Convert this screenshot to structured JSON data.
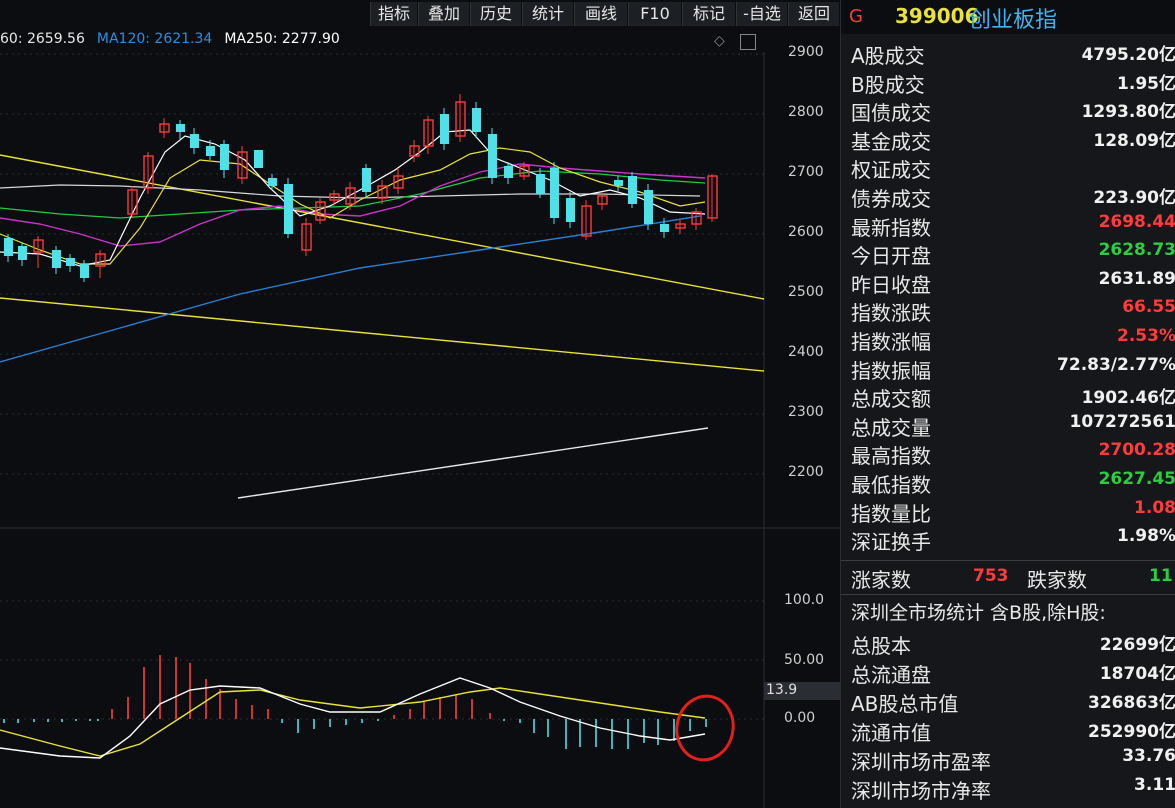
{
  "toolbar": {
    "buttons": [
      "指标",
      "叠加",
      "历史",
      "统计",
      "画线",
      "F10",
      "标记",
      "-自选",
      "返回"
    ]
  },
  "header": {
    "flag": "G",
    "code": "399006",
    "name": "创业板指"
  },
  "ma_line": {
    "ma60": "60: 2659.56",
    "ma120": "MA120: 2621.34",
    "ma250": "MA250: 2277.90"
  },
  "price_axis": [
    "2900",
    "2800",
    "2700",
    "2600",
    "2500",
    "2400",
    "2300",
    "2200"
  ],
  "indicator_axis": [
    "100.0",
    "50.00",
    "0.00"
  ],
  "indicator_value": "13.9",
  "panel": {
    "rows": [
      {
        "label": "A股成交",
        "value": "4795.20亿",
        "color": "white"
      },
      {
        "label": "B股成交",
        "value": "1.95亿",
        "color": "white"
      },
      {
        "label": "国债成交",
        "value": "1293.80亿",
        "color": "white"
      },
      {
        "label": "基金成交",
        "value": "128.09亿",
        "color": "white"
      },
      {
        "label": "权证成交",
        "value": "",
        "color": "white"
      },
      {
        "label": "债券成交",
        "value": "223.90亿",
        "color": "white"
      },
      {
        "label": "最新指数",
        "value": "2698.44",
        "color": "red"
      },
      {
        "label": "今日开盘",
        "value": "2628.73",
        "color": "green"
      },
      {
        "label": "昨日收盘",
        "value": "2631.89",
        "color": "white"
      },
      {
        "label": "指数涨跌",
        "value": "66.55",
        "color": "red"
      },
      {
        "label": "指数涨幅",
        "value": "2.53%",
        "color": "red"
      },
      {
        "label": "指数振幅",
        "value": "72.83/2.77%",
        "color": "white"
      },
      {
        "label": "总成交额",
        "value": "1902.46亿",
        "color": "white"
      },
      {
        "label": "总成交量",
        "value": "107272561",
        "color": "white"
      },
      {
        "label": "最高指数",
        "value": "2700.28",
        "color": "red"
      },
      {
        "label": "最低指数",
        "value": "2627.45",
        "color": "green"
      },
      {
        "label": "指数量比",
        "value": "1.08",
        "color": "red"
      },
      {
        "label": "深证换手",
        "value": "1.98%",
        "color": "white"
      }
    ],
    "up_label": "涨家数",
    "up_value": "753",
    "down_label": "跌家数",
    "down_value": "11",
    "stats_title": "深圳全市场统计 含B股,除H股:",
    "stats_rows": [
      {
        "label": "总股本",
        "value": "22699亿"
      },
      {
        "label": "总流通盘",
        "value": "18704亿"
      },
      {
        "label": "AB股总市值",
        "value": "326863亿"
      },
      {
        "label": "流通市值",
        "value": "252990亿"
      },
      {
        "label": "深圳市场市盈率",
        "value": "33.76"
      },
      {
        "label": "深圳市场市净率",
        "value": "3.11"
      }
    ]
  },
  "colors": {
    "up": "#ff3b3b",
    "down": "#4fe0e8",
    "ma5": "#ffffff",
    "ma10": "#e8e23a",
    "ma20": "#cc33cc",
    "ma60": "#22cc44",
    "ma120": "#2a7fd4",
    "ma250": "#d8d8d8"
  },
  "chart_data": {
    "type": "candlestick",
    "y_axis_range": [
      2200,
      2900
    ],
    "indicator_range": [
      -50,
      100
    ],
    "latest_index": 2698.44,
    "open": 2628.73,
    "high": 2700.28,
    "low": 2627.45,
    "prev_close": 2631.89
  }
}
